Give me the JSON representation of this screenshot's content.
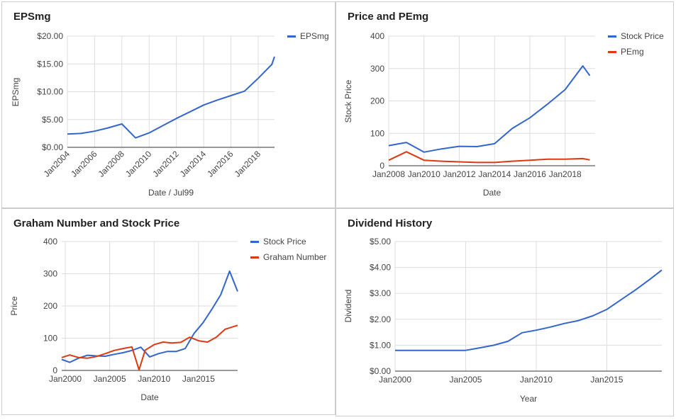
{
  "colors": {
    "blue": "#3366cc",
    "red": "#dc3912",
    "grid": "#dddddd",
    "axis": "#333333",
    "tick_text": "#444444"
  },
  "chart_data": [
    {
      "id": "eps",
      "type": "line",
      "title": "EPSmg",
      "xlabel": "Date / Jul99",
      "ylabel": "EPSmg",
      "ylim": [
        0,
        20
      ],
      "xlim": [
        2004,
        2019.2
      ],
      "y_ticks": [
        0,
        5,
        10,
        15,
        20
      ],
      "y_tick_labels": [
        "$0.00",
        "$5.00",
        "$10.00",
        "$15.00",
        "$20.00"
      ],
      "x_ticks": [
        2004,
        2006,
        2008,
        2010,
        2012,
        2014,
        2016,
        2018
      ],
      "x_tick_labels": [
        "Jan2004",
        "Jan2006",
        "Jan2008",
        "Jan2010",
        "Jan2012",
        "Jan2014",
        "Jan2016",
        "Jan2018"
      ],
      "x_labels_rotated": true,
      "grid": true,
      "legend": "right",
      "series": [
        {
          "name": "EPSmg",
          "color": "#3366cc",
          "x": [
            2004,
            2005,
            2006,
            2007,
            2008,
            2009,
            2010,
            2011,
            2012,
            2013,
            2014,
            2015,
            2016,
            2017,
            2018,
            2019,
            2019.2
          ],
          "y": [
            2.4,
            2.5,
            2.9,
            3.5,
            4.2,
            1.7,
            2.6,
            3.9,
            5.2,
            6.4,
            7.6,
            8.5,
            9.3,
            10.1,
            12.4,
            14.9,
            16.3
          ]
        }
      ]
    },
    {
      "id": "price_pe",
      "type": "line",
      "title": "Price and PEmg",
      "xlabel": "Date",
      "ylabel": "Stock Price",
      "ylim": [
        0,
        400
      ],
      "xlim": [
        2008,
        2019.7
      ],
      "y_ticks": [
        0,
        100,
        200,
        300,
        400
      ],
      "y_tick_labels": [
        "0",
        "100",
        "200",
        "300",
        "400"
      ],
      "x_ticks": [
        2008,
        2010,
        2012,
        2014,
        2016,
        2018
      ],
      "x_tick_labels": [
        "Jan2008",
        "Jan2010",
        "Jan2012",
        "Jan2014",
        "Jan2016",
        "Jan2018"
      ],
      "x_labels_rotated": false,
      "grid": true,
      "legend": "right",
      "series": [
        {
          "name": "Stock Price",
          "color": "#3366cc",
          "x": [
            2008,
            2009,
            2010,
            2011,
            2012,
            2013,
            2014,
            2015,
            2016,
            2017,
            2018,
            2019,
            2019.4
          ],
          "y": [
            62,
            72,
            42,
            52,
            60,
            59,
            68,
            115,
            148,
            190,
            235,
            308,
            278
          ]
        },
        {
          "name": "PEmg",
          "color": "#dc3912",
          "x": [
            2008,
            2009,
            2010,
            2011,
            2012,
            2013,
            2014,
            2015,
            2016,
            2017,
            2018,
            2019,
            2019.4
          ],
          "y": [
            17,
            43,
            17,
            14,
            12,
            10,
            10,
            14,
            17,
            20,
            20,
            22,
            18
          ]
        }
      ]
    },
    {
      "id": "graham",
      "type": "line",
      "title": "Graham Number and Stock Price",
      "xlabel": "Date",
      "ylabel": "Price",
      "ylim": [
        0,
        400
      ],
      "xlim": [
        1999.6,
        2019.4
      ],
      "y_ticks": [
        0,
        100,
        200,
        300,
        400
      ],
      "y_tick_labels": [
        "0",
        "100",
        "200",
        "300",
        "400"
      ],
      "x_ticks": [
        2000,
        2005,
        2010,
        2015
      ],
      "x_tick_labels": [
        "Jan2000",
        "Jan2005",
        "Jan2010",
        "Jan2015"
      ],
      "x_labels_rotated": false,
      "grid": true,
      "legend": "right",
      "series": [
        {
          "name": "Stock Price",
          "color": "#3366cc",
          "x": [
            1999.6,
            2000.5,
            2001.5,
            2002.5,
            2003.5,
            2004.5,
            2005.5,
            2006.5,
            2007.5,
            2008.5,
            2009.5,
            2010.5,
            2011.5,
            2012.5,
            2013.5,
            2014.5,
            2015.5,
            2016.5,
            2017.5,
            2018.5,
            2019.4
          ],
          "y": [
            34,
            25,
            38,
            47,
            45,
            44,
            50,
            55,
            62,
            72,
            42,
            52,
            59,
            59,
            68,
            115,
            148,
            190,
            235,
            308,
            245
          ]
        },
        {
          "name": "Graham Number",
          "color": "#dc3912",
          "x": [
            1999.6,
            2000.5,
            2001.5,
            2002.5,
            2003.5,
            2004.5,
            2005.5,
            2006.5,
            2007.5,
            2008.3,
            2009.0,
            2010.0,
            2011.0,
            2012.0,
            2013.0,
            2014.0,
            2015.0,
            2016.0,
            2017.0,
            2018.0,
            2019.4
          ],
          "y": [
            40,
            48,
            40,
            38,
            43,
            52,
            62,
            68,
            73,
            2,
            63,
            80,
            88,
            85,
            87,
            103,
            92,
            88,
            103,
            128,
            140
          ]
        }
      ]
    },
    {
      "id": "dividend",
      "type": "line",
      "title": "Dividend History",
      "xlabel": "Year",
      "ylabel": "Dividend",
      "ylim": [
        0,
        5
      ],
      "xlim": [
        2000,
        2018.9
      ],
      "y_ticks": [
        0,
        1,
        2,
        3,
        4,
        5
      ],
      "y_tick_labels": [
        "$0.00",
        "$1.00",
        "$2.00",
        "$3.00",
        "$4.00",
        "$5.00"
      ],
      "x_ticks": [
        2000,
        2005,
        2010,
        2015
      ],
      "x_tick_labels": [
        "Jan2000",
        "Jan2005",
        "Jan2010",
        "Jan2015"
      ],
      "x_labels_rotated": false,
      "grid": true,
      "legend": "none",
      "series": [
        {
          "name": "",
          "color": "#3366cc",
          "x": [
            2000,
            2001,
            2002,
            2003,
            2004,
            2005,
            2006,
            2007,
            2008,
            2009,
            2010,
            2011,
            2012,
            2013,
            2014,
            2015,
            2016,
            2017,
            2018,
            2018.9
          ],
          "y": [
            0.8,
            0.8,
            0.8,
            0.8,
            0.8,
            0.8,
            0.9,
            1.0,
            1.15,
            1.48,
            1.58,
            1.7,
            1.84,
            1.95,
            2.13,
            2.38,
            2.75,
            3.12,
            3.52,
            3.9
          ]
        }
      ]
    }
  ]
}
